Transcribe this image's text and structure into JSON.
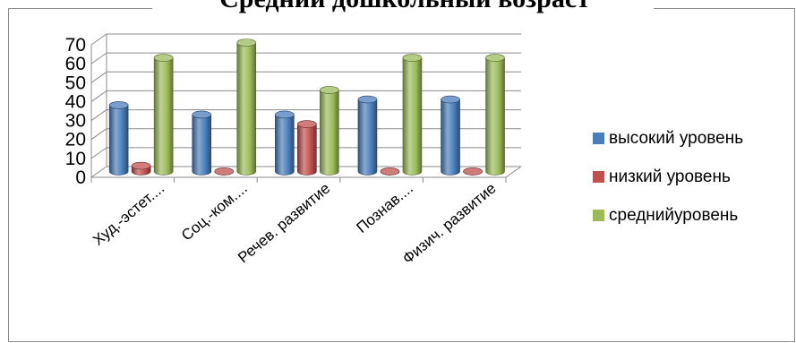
{
  "chart_data": {
    "type": "bar",
    "title": "Средний дошкольный возраст",
    "categories": [
      "Худ.-эстет....",
      "Соц.-ком....",
      "Речев. развитие",
      "Познав....",
      "Физич. развитие"
    ],
    "series": [
      {
        "name": "высокий уровень",
        "values": [
          35,
          30,
          30,
          38,
          38
        ],
        "color": "#4a7ebb"
      },
      {
        "name": "низкий уровень",
        "values": [
          3,
          0,
          25,
          0,
          0
        ],
        "color": "#c0504d"
      },
      {
        "name": "среднийуровень",
        "values": [
          60,
          68,
          43,
          60,
          60
        ],
        "color": "#9bbb59"
      }
    ],
    "yticks": [
      "0",
      "10",
      "20",
      "30",
      "40",
      "50",
      "60",
      "70"
    ],
    "ylim": [
      0,
      70
    ],
    "grid": true,
    "legend_position": "right",
    "style": "3d-cylinder"
  }
}
